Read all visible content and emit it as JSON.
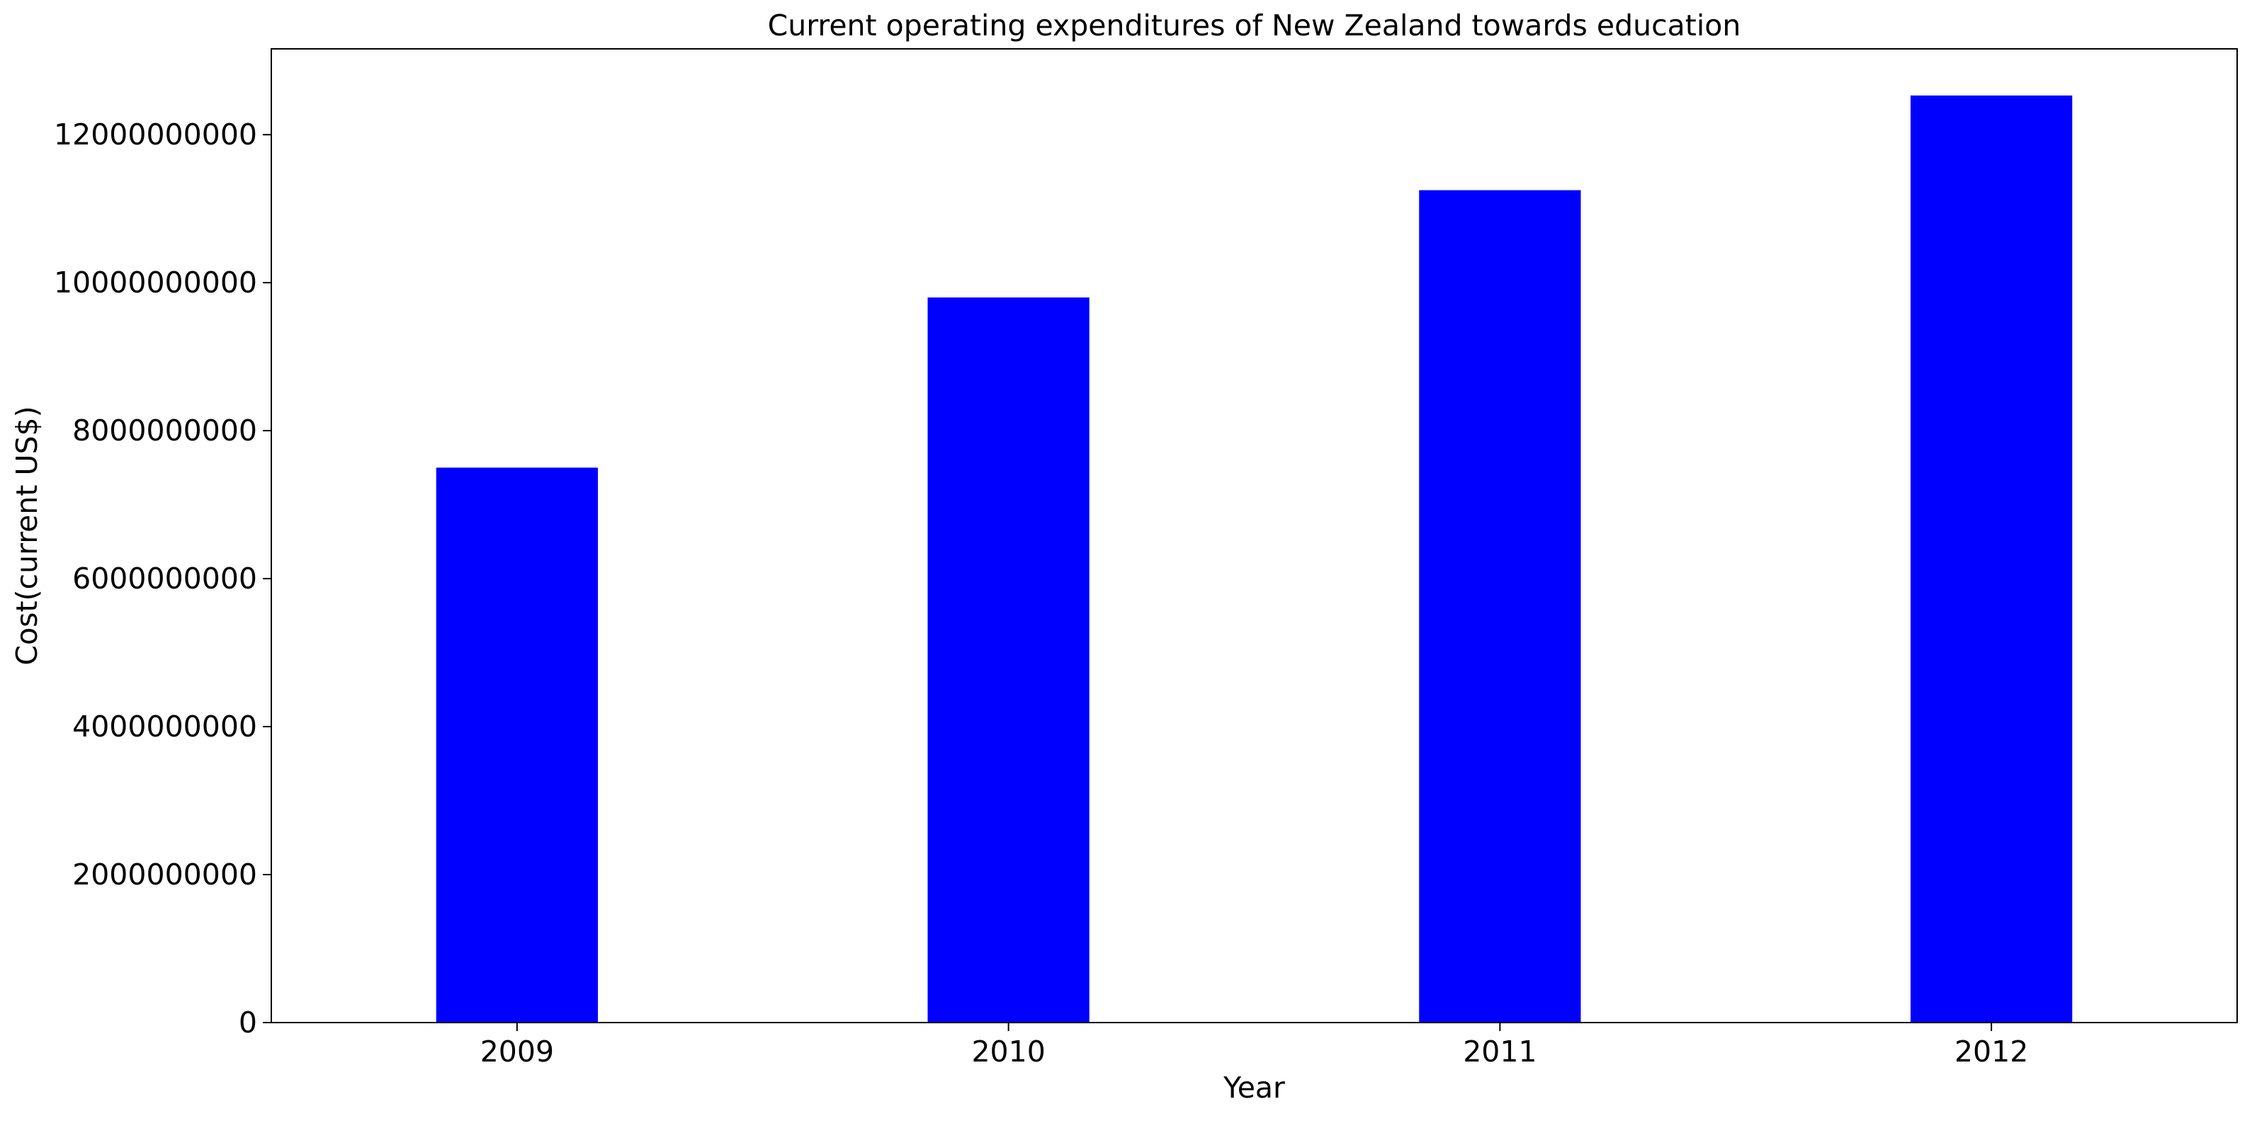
{
  "chart_data": {
    "type": "bar",
    "title": "Current operating expenditures of New Zealand towards education",
    "xlabel": "Year",
    "ylabel": "Cost(current US$)",
    "categories": [
      "2009",
      "2010",
      "2011",
      "2012"
    ],
    "series": [
      {
        "values": [
          7500000000,
          9800000000,
          11250000000,
          12530000000
        ]
      }
    ],
    "ylim": [
      0,
      13160000000
    ],
    "yticks": [
      0,
      2000000000,
      4000000000,
      6000000000,
      8000000000,
      10000000000,
      12000000000
    ],
    "ytick_labels": [
      "0",
      "2000000000",
      "4000000000",
      "6000000000",
      "8000000000",
      "10000000000",
      "12000000000"
    ],
    "bar_color": "#0000ff",
    "grid": false,
    "legend": "none"
  }
}
